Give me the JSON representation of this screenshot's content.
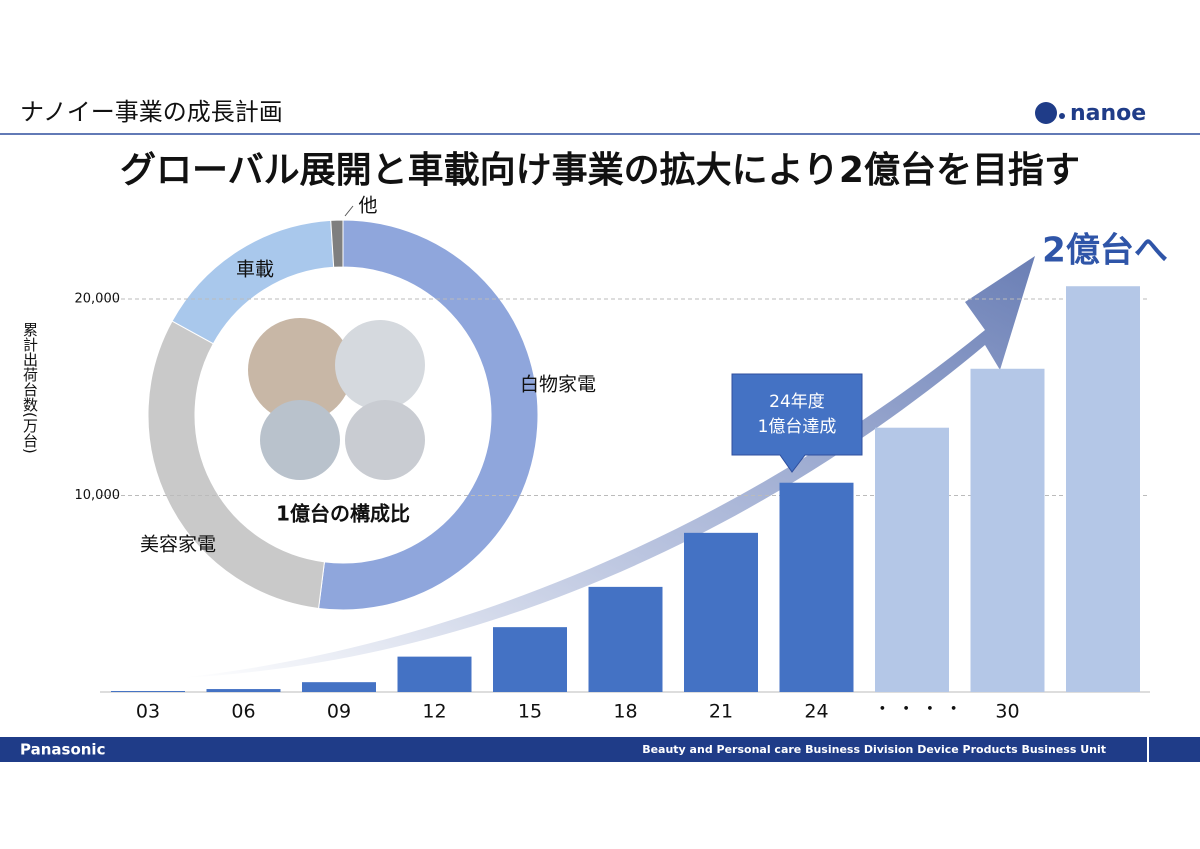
{
  "header": {
    "section_title": "ナノイー事業の成長計画",
    "logo": "nanoe",
    "headline": "グローバル展開と車載向け事業の拡大により2億台を目指す"
  },
  "chart_data": [
    {
      "type": "bar",
      "y_label": "累計出荷台数(万台)",
      "categories": [
        "03",
        "06",
        "09",
        "12",
        "15",
        "18",
        "21",
        "24",
        null,
        "30",
        null
      ],
      "values": [
        50,
        150,
        500,
        1800,
        3300,
        5350,
        8100,
        10650,
        13450,
        16450,
        20650
      ],
      "colors": [
        "#4472c4",
        "#4472c4",
        "#4472c4",
        "#4472c4",
        "#4472c4",
        "#4472c4",
        "#4472c4",
        "#4472c4",
        "#b4c7e7",
        "#b4c7e7",
        "#b4c7e7"
      ],
      "ylim": [
        0,
        22000
      ],
      "yticks": [
        {
          "value": 10000,
          "label": "10,000"
        },
        {
          "value": 20000,
          "label": "20,000"
        }
      ],
      "grid": true,
      "annotations": {
        "ellipsis": "・ ・ ・ ・",
        "target": "2億台へ",
        "callout": [
          "24年度",
          "1億台達成"
        ]
      }
    },
    {
      "type": "pie",
      "center_label": "1億台の構成比",
      "categories": [
        "白物家電",
        "美容家電",
        "車載",
        "他"
      ],
      "values": [
        52,
        31,
        16,
        1
      ],
      "colors": [
        "#8fa6dc",
        "#c9c9c9",
        "#a9c8ec",
        "#7f7f7f"
      ]
    }
  ],
  "footer": {
    "brand": "Panasonic",
    "unit": "Beauty and Personal care Business Division Device Products Business Unit"
  }
}
